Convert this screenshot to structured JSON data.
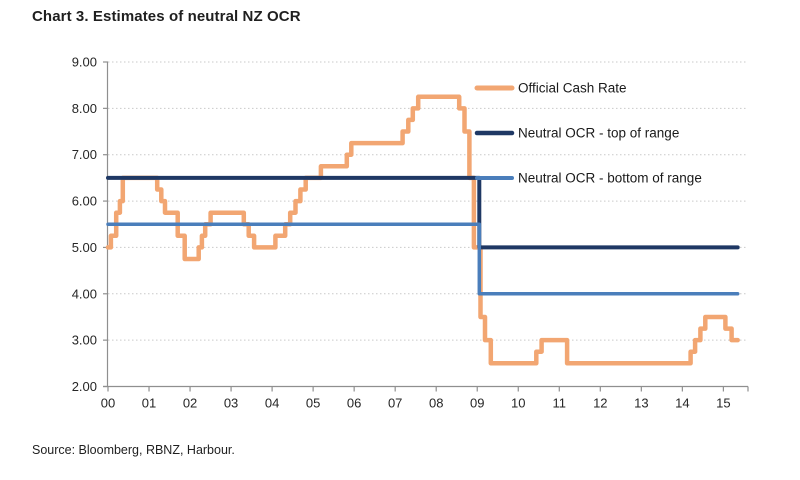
{
  "chart_data": {
    "type": "line",
    "title": "Chart 3. Estimates of neutral NZ OCR",
    "source": "Source: Bloomberg, RBNZ, Harbour.",
    "ylabel": "",
    "xlabel": "",
    "ylim": [
      2.0,
      9.0
    ],
    "x_domain_years": [
      2000,
      2015.6
    ],
    "grid": "horizontal-dotted",
    "legend_position": "top-right-inside",
    "yticks": [
      9,
      8,
      7,
      6,
      5,
      4,
      3,
      2
    ],
    "ytick_labels": [
      "9.00",
      "8.00",
      "7.00",
      "6.00",
      "5.00",
      "4.00",
      "3.00",
      "2.00"
    ],
    "xtick_years": [
      2000,
      2001,
      2002,
      2003,
      2004,
      2005,
      2006,
      2007,
      2008,
      2009,
      2010,
      2011,
      2012,
      2013,
      2014,
      2015
    ],
    "xtick_labels": [
      "00",
      "01",
      "02",
      "03",
      "04",
      "05",
      "06",
      "07",
      "08",
      "09",
      "10",
      "11",
      "12",
      "13",
      "14",
      "15"
    ],
    "series_end_year": 2015.35,
    "series": [
      {
        "name": "Official Cash Rate",
        "color": "#F2A672",
        "stroke_width": 4.5,
        "step_points": [
          [
            2000.0,
            5.0
          ],
          [
            2000.07,
            5.25
          ],
          [
            2000.2,
            5.75
          ],
          [
            2000.29,
            6.0
          ],
          [
            2000.36,
            6.5
          ],
          [
            2001.2,
            6.25
          ],
          [
            2001.3,
            6.0
          ],
          [
            2001.39,
            5.75
          ],
          [
            2001.7,
            5.25
          ],
          [
            2001.87,
            4.75
          ],
          [
            2002.21,
            5.0
          ],
          [
            2002.29,
            5.25
          ],
          [
            2002.37,
            5.5
          ],
          [
            2002.5,
            5.75
          ],
          [
            2003.31,
            5.5
          ],
          [
            2003.43,
            5.25
          ],
          [
            2003.56,
            5.0
          ],
          [
            2004.08,
            5.25
          ],
          [
            2004.32,
            5.5
          ],
          [
            2004.44,
            5.75
          ],
          [
            2004.57,
            6.0
          ],
          [
            2004.69,
            6.25
          ],
          [
            2004.82,
            6.5
          ],
          [
            2005.19,
            6.75
          ],
          [
            2005.82,
            7.0
          ],
          [
            2005.93,
            7.25
          ],
          [
            2007.18,
            7.5
          ],
          [
            2007.32,
            7.75
          ],
          [
            2007.43,
            8.0
          ],
          [
            2007.56,
            8.25
          ],
          [
            2008.56,
            8.0
          ],
          [
            2008.69,
            7.5
          ],
          [
            2008.81,
            6.5
          ],
          [
            2008.92,
            5.0
          ],
          [
            2009.08,
            3.5
          ],
          [
            2009.19,
            3.0
          ],
          [
            2009.33,
            2.5
          ],
          [
            2010.44,
            2.75
          ],
          [
            2010.57,
            3.0
          ],
          [
            2011.19,
            2.5
          ],
          [
            2014.2,
            2.75
          ],
          [
            2014.31,
            3.0
          ],
          [
            2014.44,
            3.25
          ],
          [
            2014.56,
            3.5
          ],
          [
            2015.05,
            3.25
          ],
          [
            2015.2,
            3.0
          ]
        ]
      },
      {
        "name": "Neutral OCR - top of range",
        "color": "#1F3864",
        "stroke_width": 4,
        "step_points": [
          [
            2000.0,
            6.5
          ],
          [
            2009.05,
            5.0
          ]
        ]
      },
      {
        "name": "Neutral OCR - bottom of range",
        "color": "#4A7EBB",
        "stroke_width": 3.5,
        "step_points": [
          [
            2000.0,
            5.5
          ],
          [
            2009.05,
            4.0
          ]
        ]
      }
    ],
    "colors": {
      "gridline": "#C9C9C9",
      "axis": "#8F8F8F",
      "tick_text": "#262626",
      "legend_text": "#1A1A1A",
      "background": "#FFFFFF"
    }
  }
}
